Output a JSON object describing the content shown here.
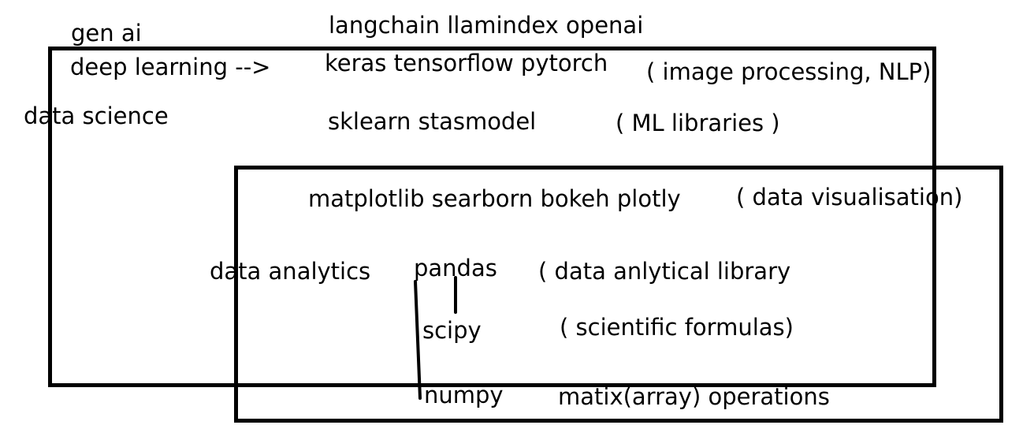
{
  "labels": {
    "gen_ai": "gen ai",
    "deep_learning": "deep learning -->",
    "data_science": "data science",
    "data_analytics": "data analytics"
  },
  "libraries": {
    "gen_ai_libs": "langchain llamindex  openai",
    "dl_libs": "keras tensorflow pytorch",
    "ml_libs": "sklearn  stasmodel",
    "viz_libs": "matplotlib  searborn bokeh plotly",
    "pandas": "pandas",
    "scipy": "scipy",
    "numpy": "numpy"
  },
  "notes": {
    "dl_note": "( image processing, NLP)",
    "ml_note": "( ML libraries )",
    "viz_note": "( data visualisation)",
    "pandas_note": "( data anlytical library",
    "scipy_note": "( scientific formulas)",
    "numpy_note": "matix(array) operations"
  }
}
